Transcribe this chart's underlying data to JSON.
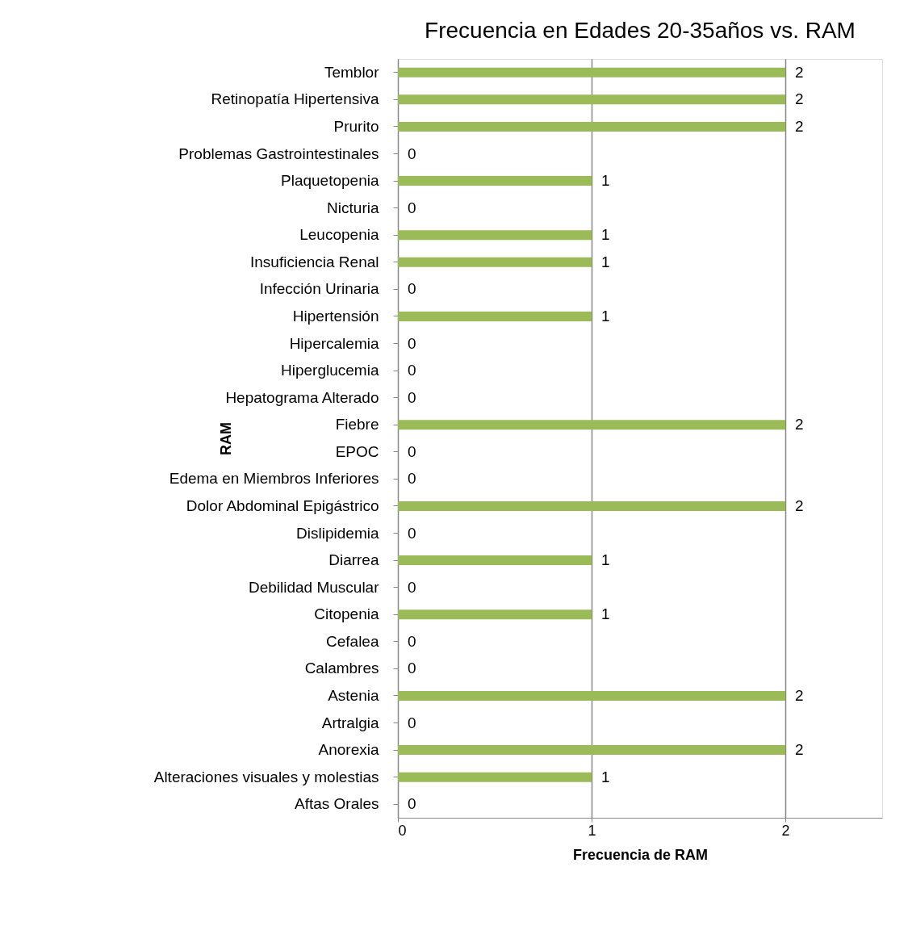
{
  "chart_data": {
    "type": "bar",
    "orientation": "horizontal",
    "title": "Frecuencia en Edades 20-35años vs. RAM",
    "xlabel": "Frecuencia de RAM",
    "ylabel": "RAM",
    "categories": [
      "Temblor",
      "Retinopatía Hipertensiva",
      "Prurito",
      "Problemas Gastrointestinales",
      "Plaquetopenia",
      "Nicturia",
      "Leucopenia",
      "Insuficiencia Renal",
      "Infección Urinaria",
      "Hipertensión",
      "Hipercalemia",
      "Hiperglucemia",
      "Hepatograma Alterado",
      "Fiebre",
      "EPOC",
      "Edema en Miembros Inferiores",
      "Dolor Abdominal Epigástrico",
      "Dislipidemia",
      "Diarrea",
      "Debilidad Muscular",
      "Citopenia",
      "Cefalea",
      "Calambres",
      "Astenia",
      "Artralgia",
      "Anorexia",
      "Alteraciones visuales y molestias",
      "Aftas Orales"
    ],
    "values": [
      2,
      2,
      2,
      0,
      1,
      0,
      1,
      1,
      0,
      1,
      0,
      0,
      0,
      2,
      0,
      0,
      2,
      0,
      1,
      0,
      1,
      0,
      0,
      2,
      0,
      2,
      1,
      0
    ],
    "color": "#9bbb59",
    "xlim": [
      0,
      2.5
    ],
    "xticks": [
      0,
      1,
      2
    ],
    "grid": "x",
    "data_labels": true
  }
}
